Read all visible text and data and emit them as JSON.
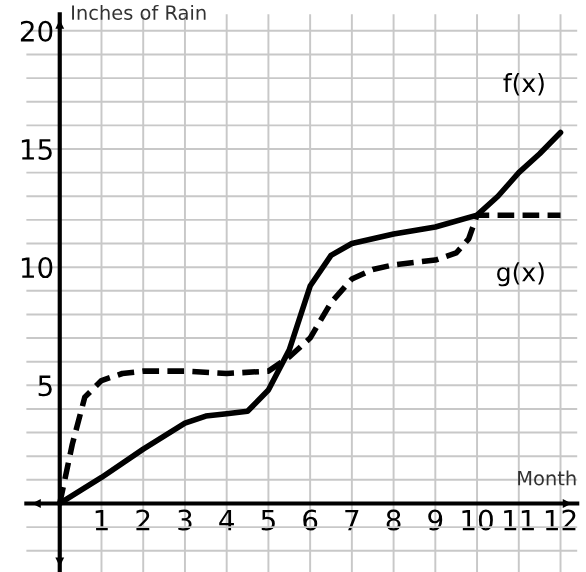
{
  "chart_data": {
    "type": "line",
    "xlabel": "Month",
    "ylabel": "Inches of Rain",
    "xlim": [
      -0.8,
      12.4
    ],
    "ylim": [
      -2.9,
      20.7
    ],
    "xticks": [
      {
        "value": 0,
        "label": null
      },
      1,
      2,
      3,
      4,
      5,
      6,
      7,
      8,
      9,
      10,
      11,
      12
    ],
    "yticks": [
      {
        "value": -2,
        "label": null
      },
      {
        "value": -1,
        "label": null
      },
      {
        "value": 0,
        "label": null
      },
      {
        "value": 1,
        "label": null
      },
      {
        "value": 2,
        "label": null
      },
      {
        "value": 3,
        "label": null
      },
      {
        "value": 4,
        "label": null
      },
      5,
      {
        "value": 6,
        "label": null
      },
      {
        "value": 7,
        "label": null
      },
      {
        "value": 8,
        "label": null
      },
      {
        "value": 9,
        "label": null
      },
      10,
      {
        "value": 11,
        "label": null
      },
      {
        "value": 12,
        "label": null
      },
      {
        "value": 13,
        "label": null
      },
      {
        "value": 14,
        "label": null
      },
      15,
      {
        "value": 16,
        "label": null
      },
      {
        "value": 17,
        "label": null
      },
      {
        "value": 18,
        "label": null
      },
      {
        "value": 19,
        "label": null
      },
      20
    ],
    "grid": true,
    "legend": false,
    "series": [
      {
        "name": "f(x)",
        "color": "#000000",
        "line_style": "solid",
        "x": [
          0,
          1,
          2,
          3,
          3.5,
          4,
          4.5,
          5,
          5.5,
          6,
          6.5,
          7,
          8,
          9,
          10,
          10.5,
          11,
          11.5,
          12
        ],
        "values": [
          0,
          1.1,
          2.3,
          3.4,
          3.7,
          3.8,
          3.9,
          4.8,
          6.5,
          9.2,
          10.5,
          11,
          11.4,
          11.7,
          12.2,
          13,
          14,
          14.8,
          15.7
        ]
      },
      {
        "name": "g(x)",
        "color": "#000000",
        "line_style": "dashed",
        "x": [
          0,
          0.3,
          0.6,
          1,
          1.5,
          2,
          3,
          4,
          5,
          5.5,
          6,
          6.5,
          7,
          7.5,
          8,
          9,
          9.5,
          9.8,
          10,
          11,
          12
        ],
        "values": [
          0,
          2.5,
          4.5,
          5.2,
          5.5,
          5.6,
          5.6,
          5.5,
          5.6,
          6.2,
          7,
          8.5,
          9.5,
          9.9,
          10.1,
          10.3,
          10.6,
          11.2,
          12.2,
          12.2,
          12.2
        ]
      }
    ]
  }
}
